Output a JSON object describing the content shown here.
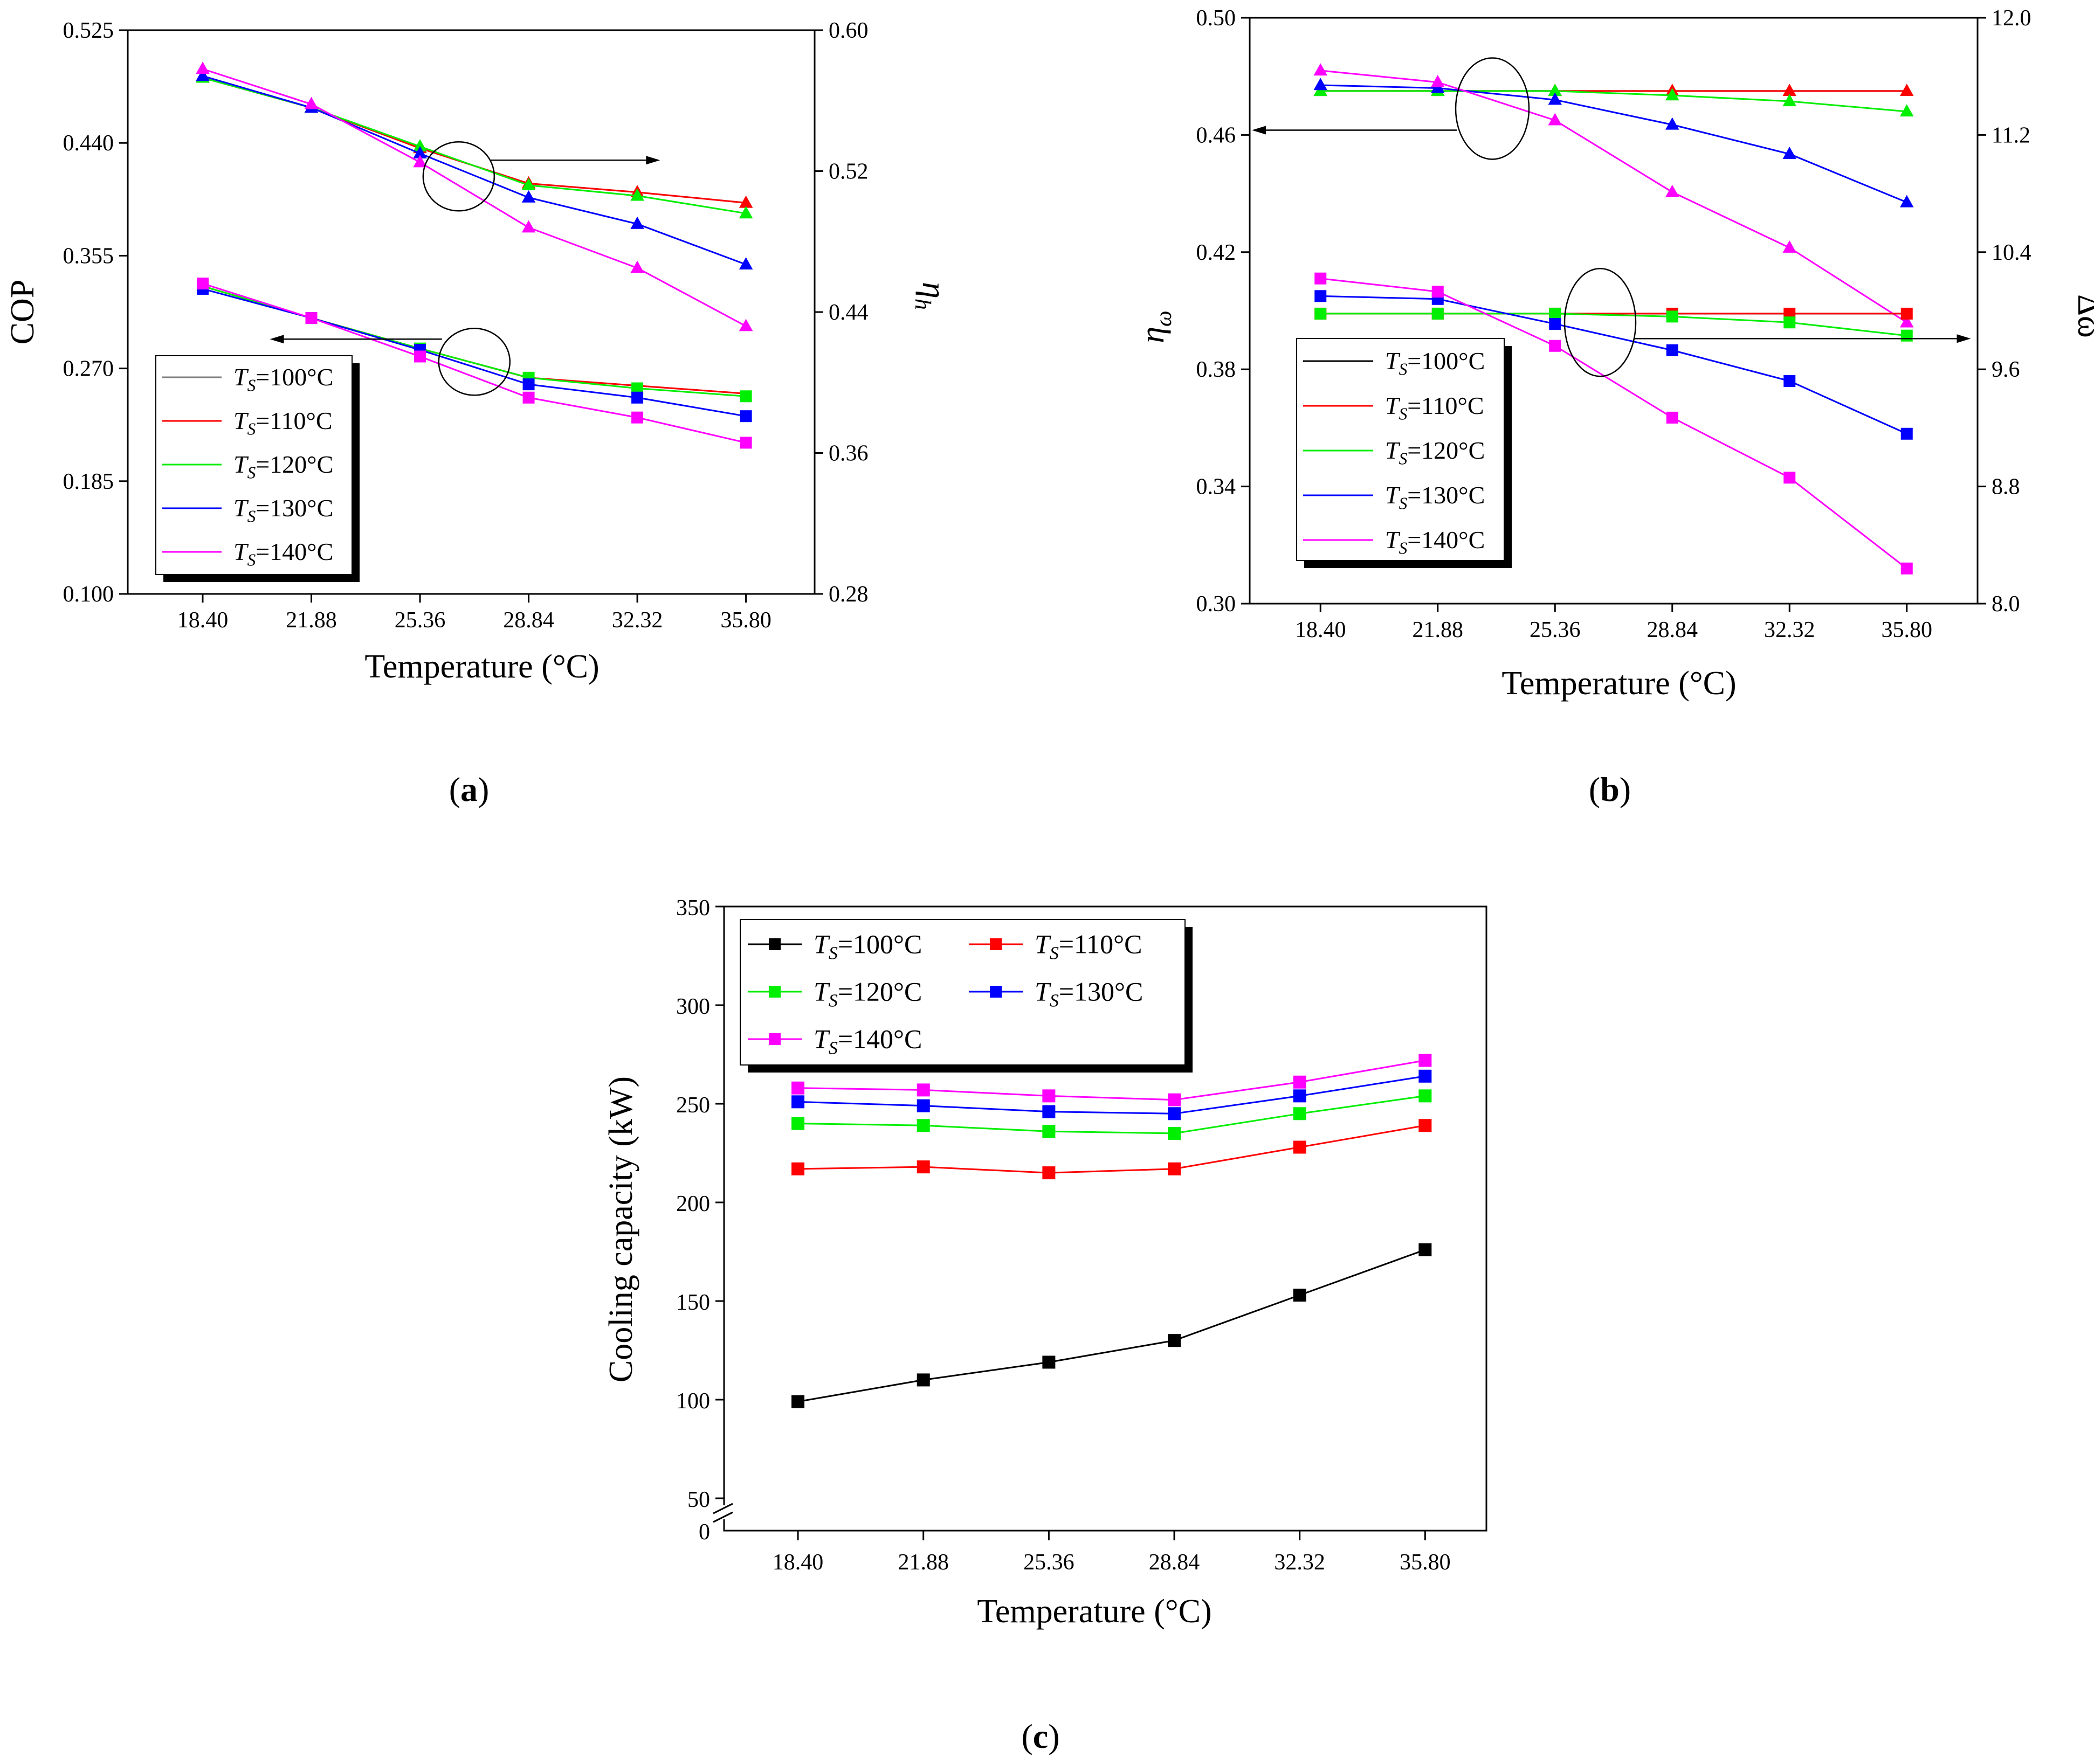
{
  "figure_labels": {
    "a_open": "(",
    "a_letter": "a",
    "a_close": ")",
    "b_open": "(",
    "b_letter": "b",
    "b_close": ")",
    "c_open": "(",
    "c_letter": "c",
    "c_close": ")"
  },
  "series_colors": {
    "100": "#7f7f7f",
    "110": "#ff0000",
    "120": "#00ee00",
    "130": "#0000ff",
    "140": "#ff00ff",
    "100_c": "#000000"
  },
  "chart_data": [
    {
      "id": "a",
      "type": "line",
      "title": "",
      "xlabel": "Temperature (°C)",
      "ylabel_left": "COP",
      "ylabel_right_main": "η",
      "ylabel_right_sub": "h",
      "x": [
        18.4,
        21.88,
        25.36,
        28.84,
        32.32,
        35.8
      ],
      "x_tick_labels": [
        "18.40",
        "21.88",
        "25.36",
        "28.84",
        "32.32",
        "35.80"
      ],
      "xlim": [
        16.0,
        38.0
      ],
      "ylim_left": [
        0.1,
        0.525
      ],
      "yticks_left": [
        "0.100",
        "0.185",
        "0.270",
        "0.355",
        "0.440",
        "0.525"
      ],
      "ylim_right": [
        0.28,
        0.6
      ],
      "yticks_right": [
        "0.28",
        "0.36",
        "0.44",
        "0.52",
        "0.60"
      ],
      "legend": {
        "placement": "lower-left",
        "entries": [
          {
            "key": "100",
            "T": "T",
            "sub": "S",
            "rest": "=100°C"
          },
          {
            "key": "110",
            "T": "T",
            "sub": "S",
            "rest": "=110°C"
          },
          {
            "key": "120",
            "T": "T",
            "sub": "S",
            "rest": "=120°C"
          },
          {
            "key": "130",
            "T": "T",
            "sub": "S",
            "rest": "=130°C"
          },
          {
            "key": "140",
            "T": "T",
            "sub": "S",
            "rest": "=140°C"
          }
        ]
      },
      "series": [
        {
          "name": "COP TS=100°C",
          "key": "100",
          "axis": "left",
          "marker": "none",
          "values": [
            0.332,
            0.308,
            0.285,
            0.263,
            0.257,
            0.251
          ]
        },
        {
          "name": "COP TS=110°C",
          "key": "110",
          "axis": "left",
          "marker": "none",
          "values": [
            0.332,
            0.308,
            0.285,
            0.263,
            0.257,
            0.251
          ]
        },
        {
          "name": "COP TS=120°C",
          "key": "120",
          "axis": "left",
          "marker": "square",
          "values": [
            0.332,
            0.308,
            0.285,
            0.263,
            0.255,
            0.249
          ]
        },
        {
          "name": "COP TS=130°C",
          "key": "130",
          "axis": "left",
          "marker": "square",
          "values": [
            0.33,
            0.308,
            0.284,
            0.258,
            0.248,
            0.234
          ]
        },
        {
          "name": "COP TS=140°C",
          "key": "140",
          "axis": "left",
          "marker": "square",
          "values": [
            0.334,
            0.308,
            0.279,
            0.248,
            0.233,
            0.214
          ]
        },
        {
          "name": "ηh TS=100°C",
          "key": "100",
          "axis": "right",
          "marker": "none",
          "values": [
            0.573,
            0.556,
            0.533,
            0.513,
            0.508,
            0.502
          ]
        },
        {
          "name": "ηh TS=110°C",
          "key": "110",
          "axis": "right",
          "marker": "triangle",
          "values": [
            0.573,
            0.556,
            0.533,
            0.513,
            0.508,
            0.502
          ]
        },
        {
          "name": "ηh TS=120°C",
          "key": "120",
          "axis": "right",
          "marker": "triangle",
          "values": [
            0.573,
            0.556,
            0.534,
            0.512,
            0.506,
            0.496
          ]
        },
        {
          "name": "ηh TS=130°C",
          "key": "130",
          "axis": "right",
          "marker": "triangle",
          "values": [
            0.574,
            0.556,
            0.53,
            0.505,
            0.49,
            0.467
          ]
        },
        {
          "name": "ηh TS=140°C",
          "key": "140",
          "axis": "right",
          "marker": "triangle",
          "values": [
            0.578,
            0.558,
            0.525,
            0.488,
            0.465,
            0.432
          ]
        }
      ],
      "annotations": [
        {
          "circle_x": 26.6,
          "circle_y_right": 0.517,
          "arrow": "right",
          "arrow_to_x": 32.6
        },
        {
          "circle_x": 27.1,
          "circle_y_left": 0.275,
          "arrow": "left",
          "arrow_to_x": 21.0
        }
      ]
    },
    {
      "id": "b",
      "type": "line",
      "title": "",
      "xlabel": "Temperature (°C)",
      "ylabel_left_main": "η",
      "ylabel_left_sub": "ω",
      "ylabel_right": "Δω",
      "x": [
        18.4,
        21.88,
        25.36,
        28.84,
        32.32,
        35.8
      ],
      "x_tick_labels": [
        "18.40",
        "21.88",
        "25.36",
        "28.84",
        "32.32",
        "35.80"
      ],
      "xlim": [
        16.3,
        37.9
      ],
      "ylim_left": [
        0.3,
        0.5
      ],
      "yticks_left": [
        "0.30",
        "0.34",
        "0.38",
        "0.42",
        "0.46",
        "0.50"
      ],
      "ylim_right": [
        8.0,
        12.0
      ],
      "yticks_right": [
        "8.0",
        "8.8",
        "9.6",
        "10.4",
        "11.2",
        "12.0"
      ],
      "legend": {
        "placement": "lower-left",
        "entries": [
          {
            "key": "100_c",
            "T": "T",
            "sub": "S",
            "rest": "=100°C"
          },
          {
            "key": "110",
            "T": "T",
            "sub": "S",
            "rest": "=110°C"
          },
          {
            "key": "120",
            "T": "T",
            "sub": "S",
            "rest": "=120°C"
          },
          {
            "key": "130",
            "T": "T",
            "sub": "S",
            "rest": "=130°C"
          },
          {
            "key": "140",
            "T": "T",
            "sub": "S",
            "rest": "=140°C"
          }
        ]
      },
      "series": [
        {
          "name": "ηω TS=100°C",
          "key": "100_c",
          "axis": "left",
          "marker": "none",
          "values": [
            0.475,
            0.475,
            0.475,
            0.475,
            0.475,
            0.475
          ]
        },
        {
          "name": "ηω TS=110°C",
          "key": "110",
          "axis": "left",
          "marker": "triangle",
          "values": [
            0.475,
            0.475,
            0.475,
            0.475,
            0.475,
            0.475
          ]
        },
        {
          "name": "ηω TS=120°C",
          "key": "120",
          "axis": "left",
          "marker": "triangle",
          "values": [
            0.475,
            0.475,
            0.475,
            0.4735,
            0.4715,
            0.468
          ]
        },
        {
          "name": "ηω TS=130°C",
          "key": "130",
          "axis": "left",
          "marker": "triangle",
          "values": [
            0.477,
            0.476,
            0.472,
            0.4635,
            0.4535,
            0.437
          ]
        },
        {
          "name": "ηω TS=140°C",
          "key": "140",
          "axis": "left",
          "marker": "triangle",
          "values": [
            0.482,
            0.478,
            0.465,
            0.4405,
            0.4215,
            0.396
          ]
        },
        {
          "name": "Δω TS=100°C",
          "key": "100_c",
          "axis": "right",
          "marker": "none",
          "values": [
            9.98,
            9.98,
            9.98,
            9.98,
            9.98,
            9.98
          ]
        },
        {
          "name": "Δω TS=110°C",
          "key": "110",
          "axis": "right",
          "marker": "square",
          "values": [
            9.98,
            9.98,
            9.98,
            9.98,
            9.98,
            9.98
          ]
        },
        {
          "name": "Δω TS=120°C",
          "key": "120",
          "axis": "right",
          "marker": "square",
          "values": [
            9.98,
            9.98,
            9.98,
            9.96,
            9.92,
            9.83
          ]
        },
        {
          "name": "Δω TS=130°C",
          "key": "130",
          "axis": "right",
          "marker": "square",
          "values": [
            10.1,
            10.08,
            9.91,
            9.73,
            9.52,
            9.16
          ]
        },
        {
          "name": "Δω TS=140°C",
          "key": "140",
          "axis": "right",
          "marker": "square",
          "values": [
            10.22,
            10.13,
            9.76,
            9.27,
            8.86,
            8.24
          ]
        }
      ],
      "annotations": [
        {
          "circle_x": 23.5,
          "circle_y_left": 0.469,
          "arrow": "left",
          "arrow_to_x": 16.3
        },
        {
          "circle_x": 26.7,
          "circle_y_left": 0.396,
          "arrow": "right",
          "arrow_to_x": 37.7
        }
      ]
    },
    {
      "id": "c",
      "type": "line",
      "title": "",
      "xlabel": "Temperature (°C)",
      "ylabel": "Cooling capacity (kW)",
      "x": [
        18.4,
        21.88,
        25.36,
        28.84,
        32.32,
        35.8
      ],
      "x_tick_labels": [
        "18.40",
        "21.88",
        "25.36",
        "28.84",
        "32.32",
        "35.80"
      ],
      "xlim": [
        16.35,
        37.5
      ],
      "ylim": [
        50,
        350
      ],
      "yticks": [
        "50",
        "100",
        "150",
        "200",
        "250",
        "300",
        "350"
      ],
      "axis_break": {
        "below": "50",
        "zero_label": "0"
      },
      "legend": {
        "placement": "top-left",
        "entries": [
          {
            "key": "100_c",
            "T": "T",
            "sub": "S",
            "rest": "=100°C"
          },
          {
            "key": "110",
            "T": "T",
            "sub": "S",
            "rest": "=110°C"
          },
          {
            "key": "120",
            "T": "T",
            "sub": "S",
            "rest": "=120°C"
          },
          {
            "key": "130",
            "T": "T",
            "sub": "S",
            "rest": "=130°C"
          },
          {
            "key": "140",
            "T": "T",
            "sub": "S",
            "rest": "=140°C"
          }
        ]
      },
      "series": [
        {
          "name": "TS=100°C",
          "key": "100_c",
          "marker": "square",
          "values": [
            99,
            110,
            119,
            130,
            153,
            176
          ]
        },
        {
          "name": "TS=110°C",
          "key": "110",
          "marker": "square",
          "values": [
            217,
            218,
            215,
            217,
            228,
            239
          ]
        },
        {
          "name": "TS=120°C",
          "key": "120",
          "marker": "square",
          "values": [
            240,
            239,
            236,
            235,
            245,
            254
          ]
        },
        {
          "name": "TS=130°C",
          "key": "130",
          "marker": "square",
          "values": [
            251,
            249,
            246,
            245,
            254,
            264
          ]
        },
        {
          "name": "TS=140°C",
          "key": "140",
          "marker": "square",
          "values": [
            258,
            257,
            254,
            252,
            261,
            272
          ]
        }
      ]
    }
  ]
}
